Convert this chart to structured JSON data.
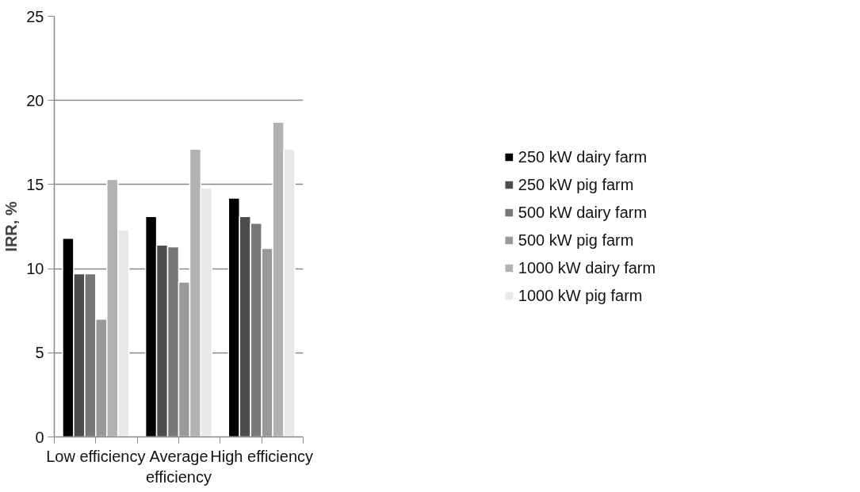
{
  "chart_data": {
    "type": "bar",
    "ylabel": "IRR, %",
    "categories": [
      "Low efficiency",
      "Average\nefficiency",
      "High efficiency"
    ],
    "series": [
      {
        "name": "250 kW dairy farm",
        "color": "#000000",
        "values": [
          11.8,
          13.1,
          14.2
        ]
      },
      {
        "name": "250 kW pig farm",
        "color": "#4d4d4d",
        "values": [
          9.7,
          11.4,
          13.1
        ]
      },
      {
        "name": "500 kW dairy farm",
        "color": "#777777",
        "values": [
          9.7,
          11.3,
          12.7
        ]
      },
      {
        "name": "500 kW pig farm",
        "color": "#999999",
        "values": [
          7.0,
          9.2,
          11.2
        ]
      },
      {
        "name": "1000 kW dairy farm",
        "color": "#b2b2b2",
        "values": [
          15.3,
          17.1,
          18.7
        ]
      },
      {
        "name": "1000 kW pig farm",
        "color": "#e8e8e8",
        "values": [
          12.3,
          14.8,
          17.1
        ]
      }
    ],
    "ylim": [
      0,
      25
    ],
    "yticks": [
      0,
      5,
      10,
      15,
      20,
      25
    ],
    "grid": "y",
    "legend": "right"
  }
}
